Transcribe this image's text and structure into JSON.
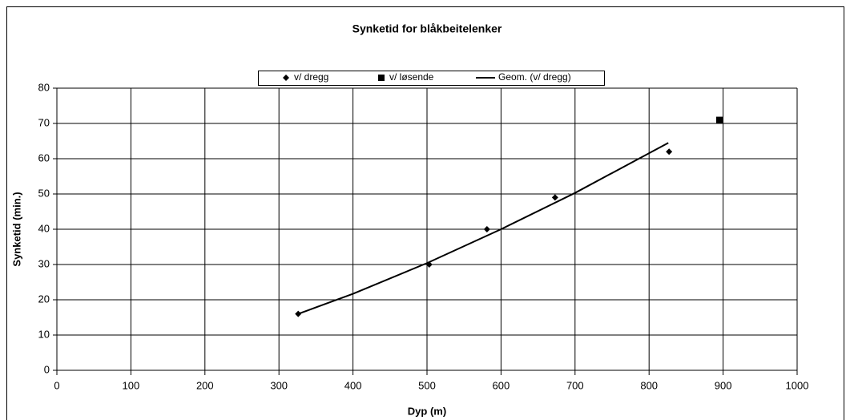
{
  "chart_data": {
    "type": "scatter",
    "title": "Synketid for blåkbeitelenker",
    "x_label": "Dyp (m)",
    "y_label": "Synketid (min.)",
    "series": [
      {
        "name": "v/ dregg",
        "color": "#000000",
        "marker": "diamond",
        "x": [
          326,
          503,
          581,
          673,
          827
        ],
        "values": [
          16,
          30,
          40,
          49,
          62
        ]
      },
      {
        "name": "v/ løsende",
        "color": "#000000",
        "marker": "square",
        "x": [
          895
        ],
        "values": [
          71
        ]
      },
      {
        "name": "Geom. (v/ dregg)",
        "color": "#000000",
        "marker": "line",
        "x": [
          326,
          400,
          500,
          600,
          700,
          826
        ],
        "values": [
          16,
          21.7,
          30.4,
          40.0,
          50.3,
          64.5
        ]
      }
    ],
    "xlim": [
      0,
      1000
    ],
    "xticks": [
      0,
      100,
      200,
      300,
      400,
      500,
      600,
      700,
      800,
      900,
      1000
    ],
    "ylim": [
      0,
      80
    ],
    "yticks": [
      0,
      10,
      20,
      30,
      40,
      50,
      60,
      70,
      80
    ],
    "grid": true,
    "legend": "top"
  }
}
